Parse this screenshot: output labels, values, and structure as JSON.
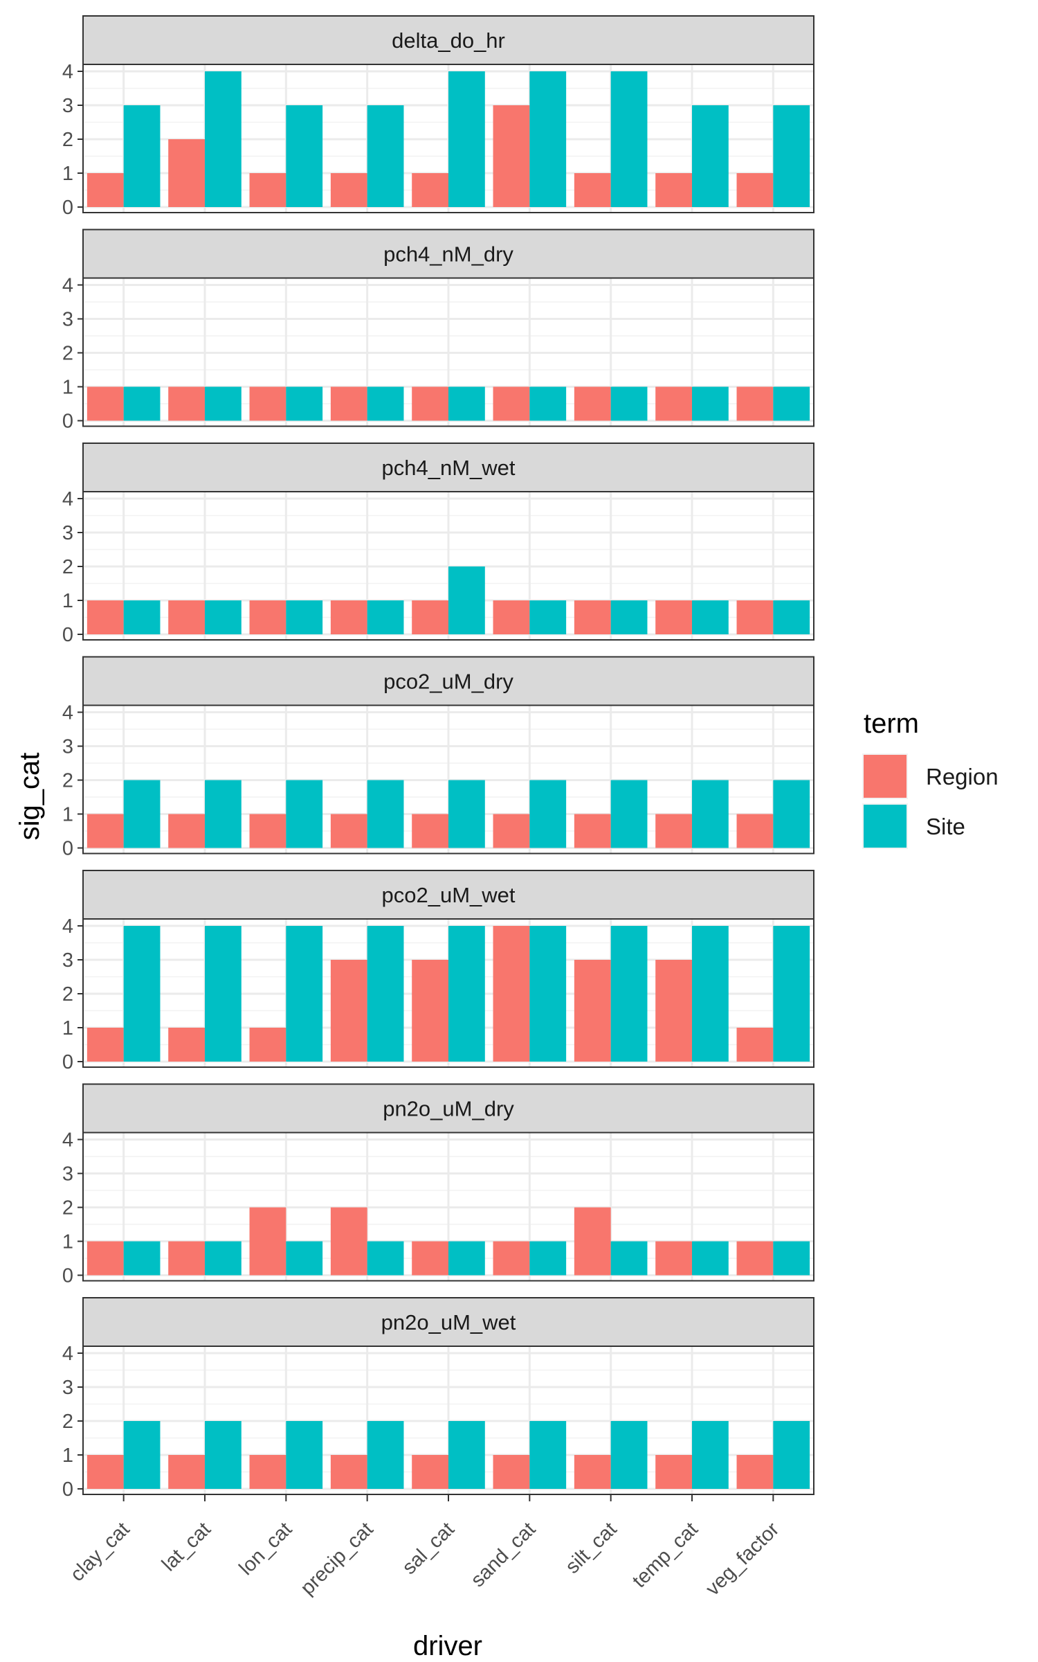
{
  "chart_data": {
    "type": "bar",
    "facet_by": "variable",
    "xlabel": "driver",
    "ylabel": "sig_cat",
    "ylim": [
      0,
      4
    ],
    "yticks": [
      0,
      1,
      2,
      3,
      4
    ],
    "grid": true,
    "legend": {
      "title": "term",
      "position": "right"
    },
    "categories": [
      "clay_cat",
      "lat_cat",
      "lon_cat",
      "precip_cat",
      "sal_cat",
      "sand_cat",
      "silt_cat",
      "temp_cat",
      "veg_factor"
    ],
    "series_meta": [
      {
        "name": "Region",
        "color": "#F8766D"
      },
      {
        "name": "Site",
        "color": "#00BFC4"
      }
    ],
    "panels": [
      {
        "title": "delta_do_hr",
        "series": [
          {
            "name": "Region",
            "values": [
              1,
              2,
              1,
              1,
              1,
              3,
              1,
              1,
              1
            ]
          },
          {
            "name": "Site",
            "values": [
              3,
              4,
              3,
              3,
              4,
              4,
              4,
              3,
              3
            ]
          }
        ]
      },
      {
        "title": "pch4_nM_dry",
        "series": [
          {
            "name": "Region",
            "values": [
              1,
              1,
              1,
              1,
              1,
              1,
              1,
              1,
              1
            ]
          },
          {
            "name": "Site",
            "values": [
              1,
              1,
              1,
              1,
              1,
              1,
              1,
              1,
              1
            ]
          }
        ]
      },
      {
        "title": "pch4_nM_wet",
        "series": [
          {
            "name": "Region",
            "values": [
              1,
              1,
              1,
              1,
              1,
              1,
              1,
              1,
              1
            ]
          },
          {
            "name": "Site",
            "values": [
              1,
              1,
              1,
              1,
              2,
              1,
              1,
              1,
              1
            ]
          }
        ]
      },
      {
        "title": "pco2_uM_dry",
        "series": [
          {
            "name": "Region",
            "values": [
              1,
              1,
              1,
              1,
              1,
              1,
              1,
              1,
              1
            ]
          },
          {
            "name": "Site",
            "values": [
              2,
              2,
              2,
              2,
              2,
              2,
              2,
              2,
              2
            ]
          }
        ]
      },
      {
        "title": "pco2_uM_wet",
        "series": [
          {
            "name": "Region",
            "values": [
              1,
              1,
              1,
              3,
              3,
              4,
              3,
              3,
              1
            ]
          },
          {
            "name": "Site",
            "values": [
              4,
              4,
              4,
              4,
              4,
              4,
              4,
              4,
              4
            ]
          }
        ]
      },
      {
        "title": "pn2o_uM_dry",
        "series": [
          {
            "name": "Region",
            "values": [
              1,
              1,
              2,
              2,
              1,
              1,
              2,
              1,
              1
            ]
          },
          {
            "name": "Site",
            "values": [
              1,
              1,
              1,
              1,
              1,
              1,
              1,
              1,
              1
            ]
          }
        ]
      },
      {
        "title": "pn2o_uM_wet",
        "series": [
          {
            "name": "Region",
            "values": [
              1,
              1,
              1,
              1,
              1,
              1,
              1,
              1,
              1
            ]
          },
          {
            "name": "Site",
            "values": [
              2,
              2,
              2,
              2,
              2,
              2,
              2,
              2,
              2
            ]
          }
        ]
      }
    ]
  }
}
